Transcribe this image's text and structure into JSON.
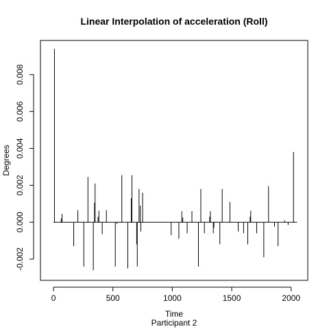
{
  "chart_data": {
    "type": "line",
    "title": "Linear Interpolation of acceleration (Roll)",
    "xlabel": "Time",
    "xsublabel": "Participant  2",
    "ylabel": "Degrees",
    "xlim": [
      -110,
      2140
    ],
    "ylim": [
      -0.00315,
      0.00985
    ],
    "xticks": [
      0,
      500,
      1000,
      1500,
      2000
    ],
    "yticks": [
      -0.002,
      0.0,
      0.002,
      0.004,
      0.006,
      0.008
    ],
    "xtick_labels": [
      "0",
      "500",
      "1000",
      "1500",
      "2000"
    ],
    "ytick_labels": [
      "-0.002",
      "0.000",
      "0.002",
      "0.004",
      "0.006",
      "0.008"
    ],
    "grid": false,
    "line_color": "#000000",
    "baseline_range": [
      0,
      2050
    ],
    "series": [
      {
        "spikes": [
          [
            8,
            0.0094
          ],
          [
            65,
            0.0002
          ],
          [
            72,
            0.00045
          ],
          [
            170,
            -0.0013
          ],
          [
            205,
            0.00065
          ],
          [
            255,
            -0.0024
          ],
          [
            290,
            0.00245
          ],
          [
            335,
            -0.0026
          ],
          [
            345,
            0.00105
          ],
          [
            350,
            0.0021
          ],
          [
            375,
            0.0003
          ],
          [
            382,
            0.00062
          ],
          [
            410,
            -0.00065
          ],
          [
            445,
            0.00065
          ],
          [
            520,
            -0.0024
          ],
          [
            535,
            -0.0001
          ],
          [
            575,
            0.00255
          ],
          [
            625,
            -0.0025
          ],
          [
            655,
            0.0013
          ],
          [
            660,
            0.00255
          ],
          [
            700,
            -0.0012
          ],
          [
            705,
            -0.0024
          ],
          [
            720,
            0.0018
          ],
          [
            730,
            0.0009
          ],
          [
            735,
            -0.0005
          ],
          [
            750,
            0.0016
          ],
          [
            990,
            -0.0007
          ],
          [
            1055,
            -0.0009
          ],
          [
            1080,
            0.0006
          ],
          [
            1088,
            0.00025
          ],
          [
            1125,
            -0.0006
          ],
          [
            1165,
            0.0006
          ],
          [
            1220,
            -0.0024
          ],
          [
            1240,
            0.0018
          ],
          [
            1270,
            -0.0006
          ],
          [
            1315,
            0.0003
          ],
          [
            1320,
            0.0006
          ],
          [
            1345,
            -0.0006
          ],
          [
            1350,
            -0.0003
          ],
          [
            1400,
            -0.0012
          ],
          [
            1420,
            0.0018
          ],
          [
            1485,
            0.0011
          ],
          [
            1555,
            -0.0005
          ],
          [
            1600,
            -0.0006
          ],
          [
            1635,
            -0.0012
          ],
          [
            1655,
            0.0003
          ],
          [
            1660,
            0.00062
          ],
          [
            1710,
            -0.0006
          ],
          [
            1770,
            -0.0019
          ],
          [
            1810,
            0.00195
          ],
          [
            1860,
            -0.00025
          ],
          [
            1890,
            -0.0013
          ],
          [
            1945,
            0.0001
          ],
          [
            1975,
            -0.00015
          ],
          [
            2020,
            0.0038
          ]
        ]
      }
    ]
  }
}
